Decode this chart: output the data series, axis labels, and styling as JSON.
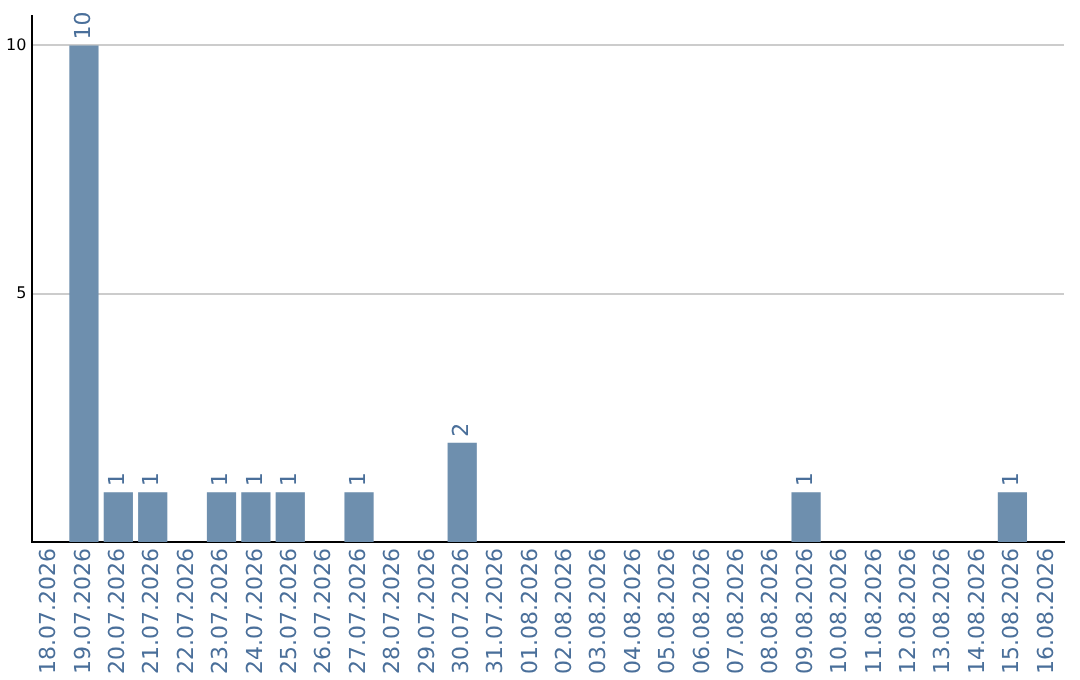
{
  "chart_data": {
    "type": "bar",
    "categories": [
      "18.07.2026",
      "19.07.2026",
      "20.07.2026",
      "21.07.2026",
      "22.07.2026",
      "23.07.2026",
      "24.07.2026",
      "25.07.2026",
      "26.07.2026",
      "27.07.2026",
      "28.07.2026",
      "29.07.2026",
      "30.07.2026",
      "31.07.2026",
      "01.08.2026",
      "02.08.2026",
      "03.08.2026",
      "04.08.2026",
      "05.08.2026",
      "06.08.2026",
      "07.08.2026",
      "08.08.2026",
      "09.08.2026",
      "10.08.2026",
      "11.08.2026",
      "12.08.2026",
      "13.08.2026",
      "14.08.2026",
      "15.08.2026",
      "16.08.2026"
    ],
    "values": [
      0,
      10,
      1,
      1,
      0,
      1,
      1,
      1,
      0,
      1,
      0,
      0,
      2,
      0,
      0,
      0,
      0,
      0,
      0,
      0,
      0,
      0,
      1,
      0,
      0,
      0,
      0,
      0,
      1,
      0
    ],
    "value_labels": [
      null,
      "10",
      "1",
      "1",
      null,
      "1",
      "1",
      "1",
      null,
      "1",
      null,
      null,
      "2",
      null,
      null,
      null,
      null,
      null,
      null,
      null,
      null,
      null,
      "1",
      null,
      null,
      null,
      null,
      null,
      "1",
      null
    ],
    "color": "#6e8fae",
    "ylim": [
      0,
      10.6
    ],
    "yticks": [
      5,
      10
    ],
    "grid": "y",
    "legend": false
  }
}
